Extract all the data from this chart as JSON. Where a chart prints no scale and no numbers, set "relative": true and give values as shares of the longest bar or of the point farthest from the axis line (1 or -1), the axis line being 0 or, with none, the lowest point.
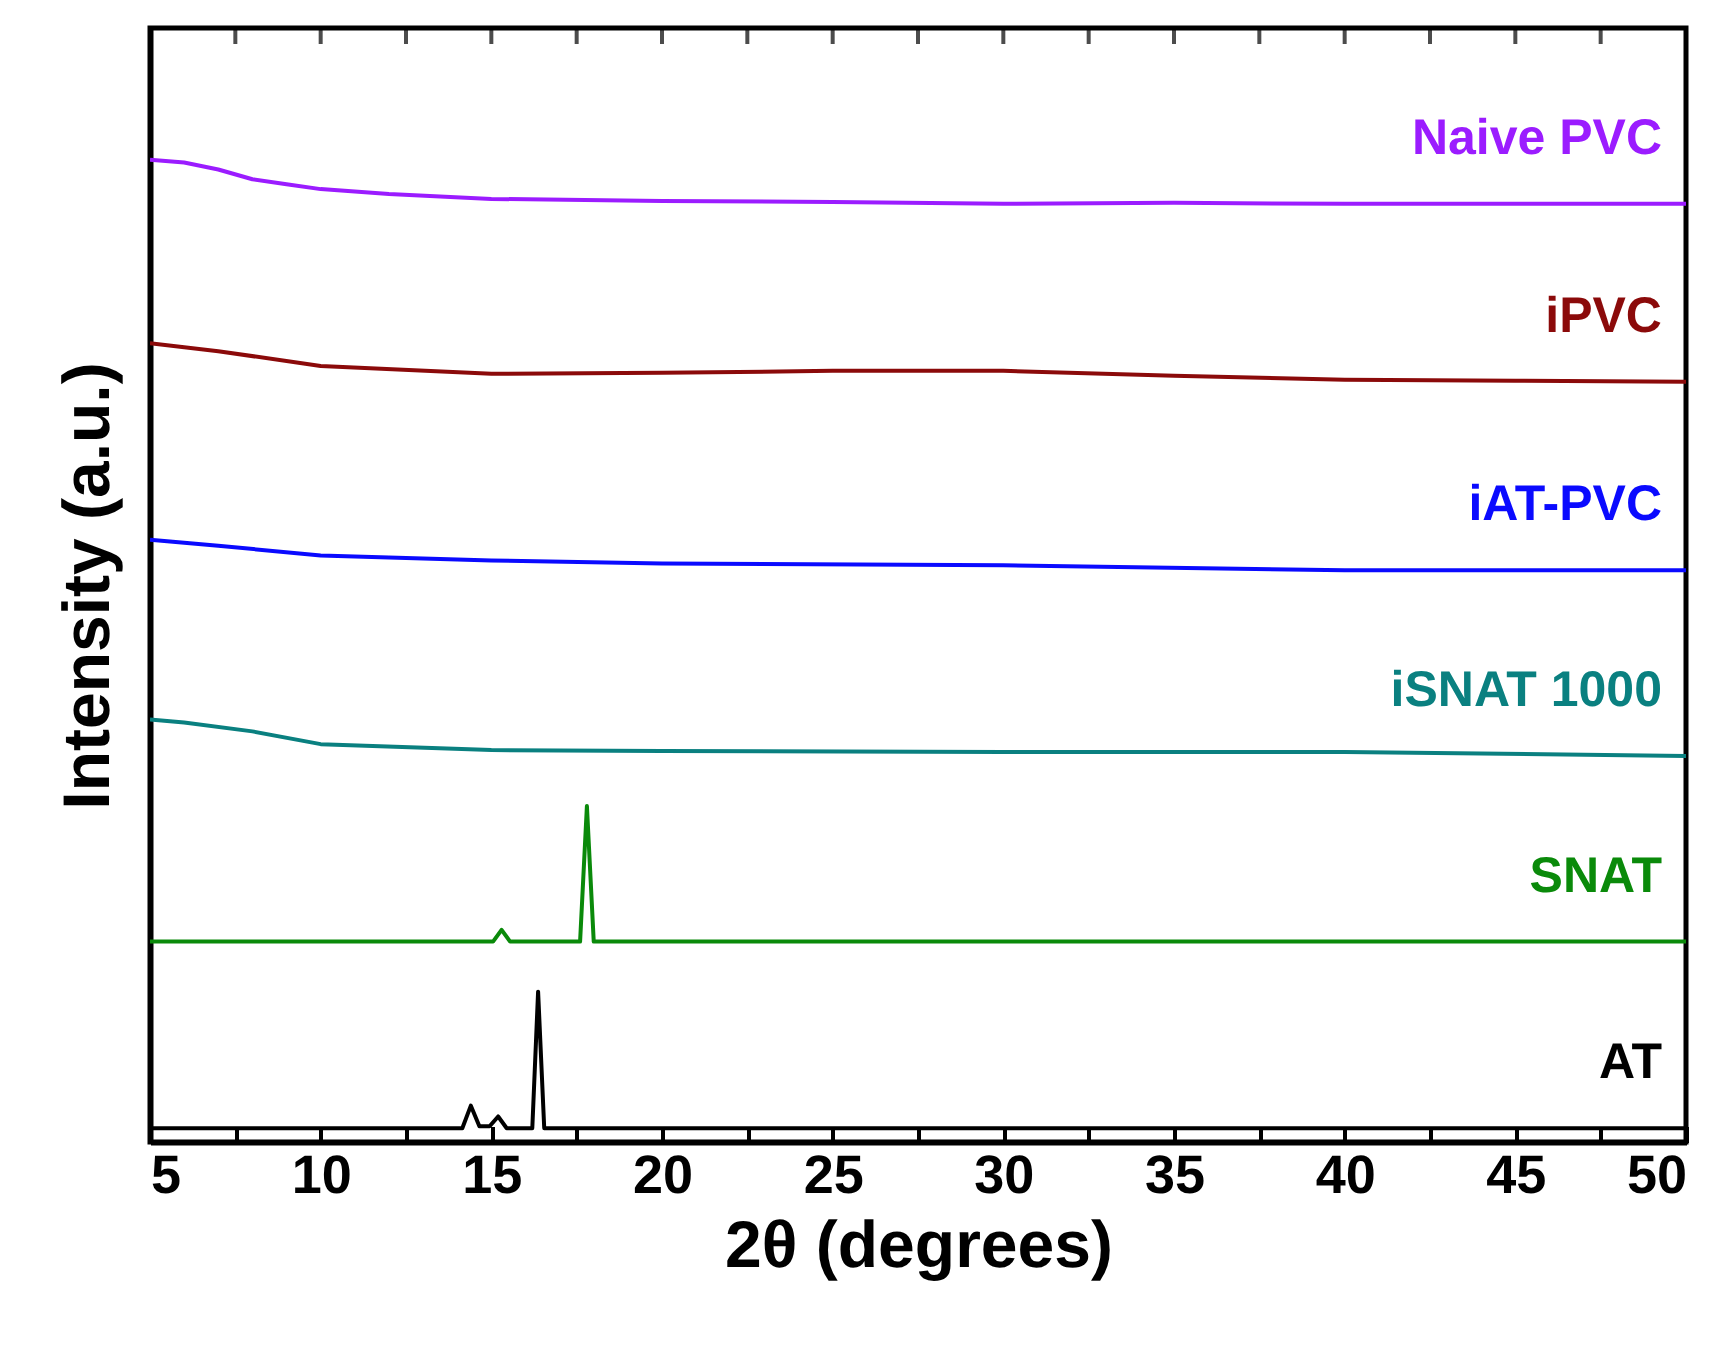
{
  "chart_data": {
    "type": "line",
    "relative": true,
    "xlabel": "2θ (degrees)",
    "ylabel": "Intensity (a.u.)",
    "xlim": [
      5,
      50
    ],
    "xticks": [
      5,
      {
        "value": 7.5,
        "label": null
      },
      10,
      {
        "value": 12.5,
        "label": null
      },
      15,
      {
        "value": 17.5,
        "label": null
      },
      20,
      {
        "value": 22.5,
        "label": null
      },
      25,
      {
        "value": 27.5,
        "label": null
      },
      30,
      {
        "value": 32.5,
        "label": null
      },
      35,
      {
        "value": 37.5,
        "label": null
      },
      40,
      {
        "value": 42.5,
        "label": null
      },
      45,
      {
        "value": 47.5,
        "label": null
      },
      50
    ],
    "grid": false,
    "line_style": "solid",
    "series": [
      {
        "name": "Naive PVC",
        "color": "#9b1cff",
        "x": [
          5,
          6,
          7,
          8,
          9,
          10,
          12,
          15,
          20,
          25,
          30,
          35,
          40,
          45,
          50
        ],
        "values": [
          1.0,
          0.997,
          0.99,
          0.98,
          0.975,
          0.97,
          0.965,
          0.96,
          0.958,
          0.957,
          0.955,
          0.956,
          0.955,
          0.955,
          0.955
        ]
      },
      {
        "name": "iPVC",
        "color": "#8b0a0a",
        "x": [
          5,
          7,
          10,
          15,
          20,
          25,
          30,
          35,
          40,
          45,
          50
        ],
        "values": [
          0.813,
          0.805,
          0.79,
          0.782,
          0.783,
          0.785,
          0.785,
          0.78,
          0.776,
          0.775,
          0.774
        ]
      },
      {
        "name": "iAT-PVC",
        "color": "#0a0aff",
        "x": [
          5,
          7,
          10,
          15,
          20,
          30,
          40,
          50
        ],
        "values": [
          0.613,
          0.607,
          0.597,
          0.592,
          0.589,
          0.587,
          0.582,
          0.582
        ]
      },
      {
        "name": "iSNAT 1000",
        "color": "#0a8080",
        "x": [
          5,
          6,
          8,
          10,
          15,
          20,
          30,
          40,
          50
        ],
        "values": [
          0.43,
          0.427,
          0.418,
          0.405,
          0.399,
          0.398,
          0.397,
          0.397,
          0.393
        ]
      },
      {
        "name": "SNAT",
        "color": "#0a8a0a",
        "x": [
          5,
          15.05,
          15.3,
          15.55,
          17.6,
          17.8,
          18.0,
          50
        ],
        "values": [
          0.204,
          0.204,
          0.216,
          0.204,
          0.204,
          0.342,
          0.204,
          0.204
        ]
      },
      {
        "name": "AT",
        "color": "#000000",
        "x": [
          5,
          14.15,
          14.4,
          14.65,
          14.95,
          15.2,
          15.45,
          16.2,
          16.37,
          16.55,
          50
        ],
        "values": [
          0.014,
          0.014,
          0.037,
          0.016,
          0.016,
          0.026,
          0.014,
          0.014,
          0.153,
          0.014,
          0.014
        ]
      }
    ]
  }
}
